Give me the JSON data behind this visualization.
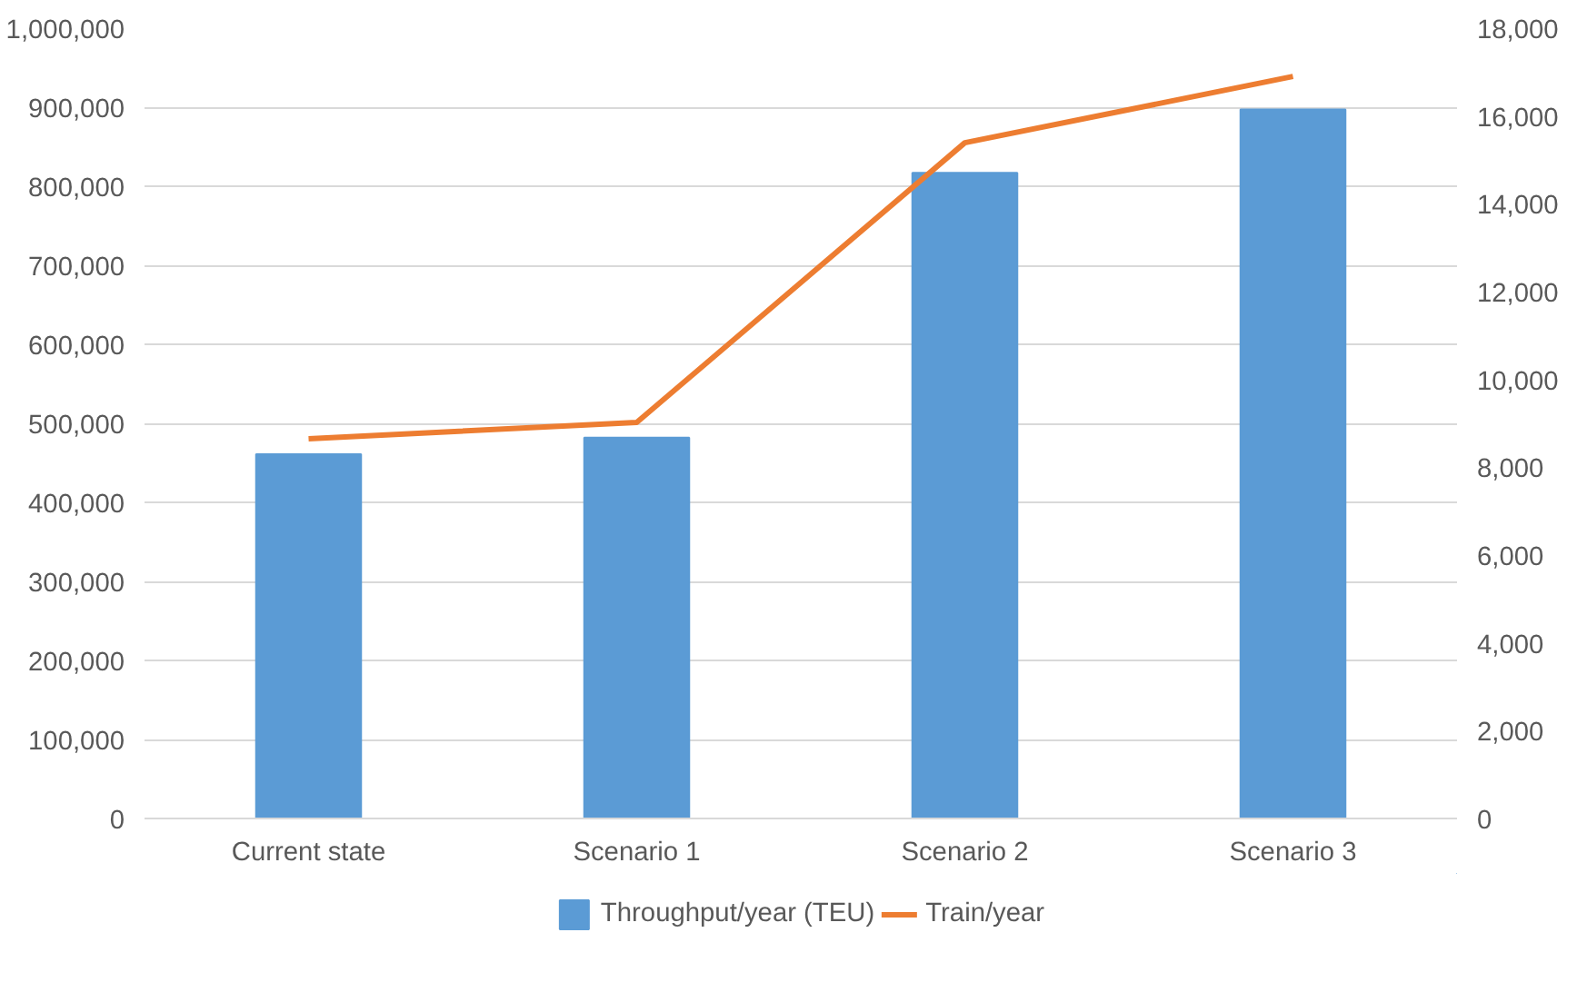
{
  "chart_data": {
    "type": "bar",
    "categories": [
      "Current state",
      "Scenario 1",
      "Scenario 2",
      "Scenario 3"
    ],
    "series": [
      {
        "name": "Throughput/year (TEU)",
        "color": "#5b9bd5",
        "values": [
          461000,
          482000,
          817000,
          897000
        ]
      },
      {
        "name": "Train/year",
        "color": "#ed7d31",
        "type": "line",
        "axis": "y2",
        "values": [
          8650,
          9020,
          15390,
          16900
        ]
      }
    ],
    "ylim": [
      0,
      1000000
    ],
    "yticks": [
      {
        "value": 0,
        "label": "0"
      },
      {
        "value": 100000,
        "label": "100,000"
      },
      {
        "value": 200000,
        "label": "200,000"
      },
      {
        "value": 300000,
        "label": "300,000"
      },
      {
        "value": 400000,
        "label": "400,000"
      },
      {
        "value": 500000,
        "label": "500,000"
      },
      {
        "value": 600000,
        "label": "600,000"
      },
      {
        "value": 700000,
        "label": "700,000"
      },
      {
        "value": 800000,
        "label": "800,000"
      },
      {
        "value": 900000,
        "label": "900,000"
      },
      {
        "value": 1000000,
        "label": "1,000,000"
      }
    ],
    "y2lim": [
      0,
      18000
    ],
    "y2ticks": [
      {
        "value": 0,
        "label": "0"
      },
      {
        "value": 2000,
        "label": "2,000"
      },
      {
        "value": 4000,
        "label": "4,000"
      },
      {
        "value": 6000,
        "label": "6,000"
      },
      {
        "value": 8000,
        "label": "8,000"
      },
      {
        "value": 10000,
        "label": "10,000"
      },
      {
        "value": 12000,
        "label": "12,000"
      },
      {
        "value": 14000,
        "label": "14,000"
      },
      {
        "value": 16000,
        "label": "16,000"
      },
      {
        "value": 18000,
        "label": "18,000"
      }
    ],
    "grid": "y",
    "legend": "bottom"
  }
}
